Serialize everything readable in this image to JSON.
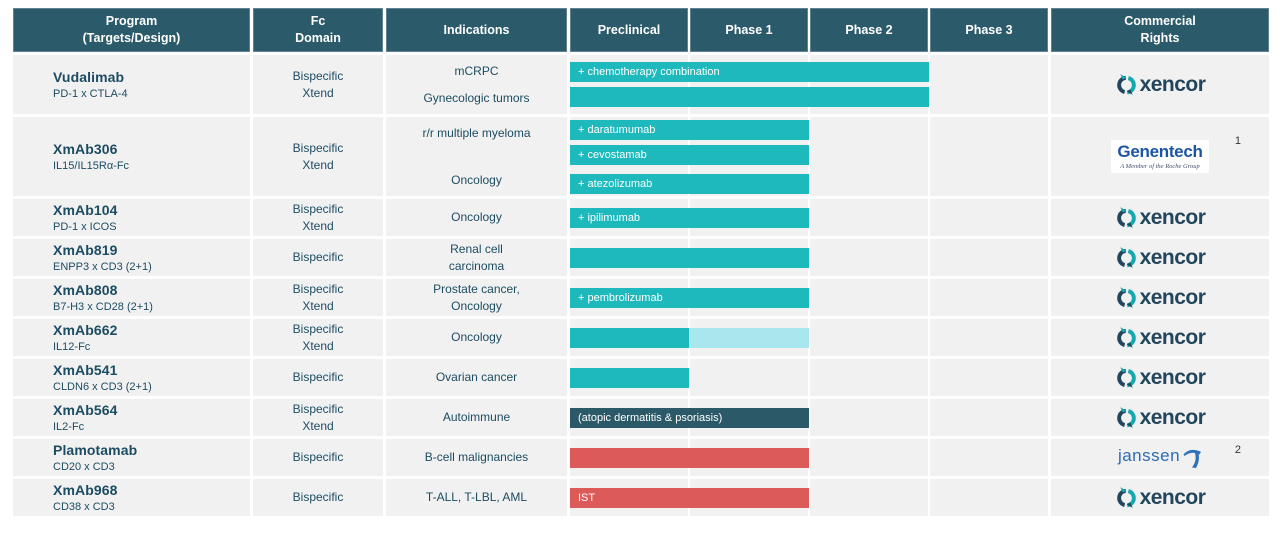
{
  "columns": [
    "Program\n(Targets/Design)",
    "Fc\nDomain",
    "Indications",
    "Preclinical",
    "Phase 1",
    "Phase 2",
    "Phase 3",
    "Commercial\nRights"
  ],
  "colors": {
    "header_bg": "#2b5a6a",
    "row_bg": "#f1f1f2",
    "teal": "#1db9bd",
    "light_teal": "#a9e7ef",
    "navy": "#2b5968",
    "red": "#dc5a57",
    "text": "#1d4c61"
  },
  "logos": {
    "xencor_label": "xencor",
    "genentech_label": "Genentech",
    "genentech_tagline": "A Member of the Roche Group",
    "janssen_label": "janssen"
  },
  "chart_data": {
    "type": "table",
    "title": "Clinical pipeline by development phase",
    "phases": [
      "Preclinical",
      "Phase 1",
      "Phase 2",
      "Phase 3"
    ],
    "phase_end_fracs": {
      "preclinical": 0.249,
      "phase1": 0.5,
      "phase2": 0.751
    },
    "rows": [
      {
        "program": "Vudalimab",
        "target": "PD-1 x CTLA-4",
        "fc_domain": "Bispecific\nXtend",
        "indications": [
          "mCRPC",
          "Gynecologic tumors"
        ],
        "bars": [
          {
            "label": "+ chemotherapy combination",
            "segments": [
              {
                "color": "teal",
                "start": 0,
                "end": 0.751
              }
            ]
          },
          {
            "label": "",
            "segments": [
              {
                "color": "teal",
                "start": 0,
                "end": 0.751
              }
            ]
          }
        ],
        "rights": "xencor",
        "footnote": ""
      },
      {
        "program": "XmAb306",
        "target": "IL15/IL15Rα-Fc",
        "fc_domain": "Bispecific\nXtend",
        "indications": [
          "r/r multiple myeloma",
          "Oncology"
        ],
        "bars": [
          {
            "label": "+ daratumumab",
            "segments": [
              {
                "color": "teal",
                "start": 0,
                "end": 0.5
              }
            ]
          },
          {
            "label": "+ cevostamab",
            "segments": [
              {
                "color": "teal",
                "start": 0,
                "end": 0.5
              }
            ]
          },
          {
            "label": "+ atezolizumab",
            "spacer": true,
            "segments": [
              {
                "color": "teal",
                "start": 0,
                "end": 0.5
              }
            ]
          }
        ],
        "rights": "genentech",
        "footnote": "1"
      },
      {
        "program": "XmAb104",
        "target": "PD-1 x ICOS",
        "fc_domain": "Bispecific\nXtend",
        "indications": [
          "Oncology"
        ],
        "bars": [
          {
            "label": "+ ipilimumab",
            "segments": [
              {
                "color": "teal",
                "start": 0,
                "end": 0.5
              }
            ]
          }
        ],
        "rights": "xencor",
        "footnote": ""
      },
      {
        "program": "XmAb819",
        "target": "ENPP3 x CD3 (2+1)",
        "fc_domain": "Bispecific",
        "indications": [
          "Renal cell\ncarcinoma"
        ],
        "bars": [
          {
            "label": "",
            "segments": [
              {
                "color": "teal",
                "start": 0,
                "end": 0.5
              }
            ]
          }
        ],
        "rights": "xencor",
        "footnote": ""
      },
      {
        "program": "XmAb808",
        "target": "B7-H3 x CD28 (2+1)",
        "fc_domain": "Bispecific\nXtend",
        "indications": [
          "Prostate cancer,\nOncology"
        ],
        "bars": [
          {
            "label": "+ pembrolizumab",
            "segments": [
              {
                "color": "teal",
                "start": 0,
                "end": 0.5
              }
            ]
          }
        ],
        "rights": "xencor",
        "footnote": ""
      },
      {
        "program": "XmAb662",
        "target": "IL12-Fc",
        "fc_domain": "Bispecific\nXtend",
        "indications": [
          "Oncology"
        ],
        "bars": [
          {
            "label": "",
            "segments": [
              {
                "color": "teal",
                "start": 0,
                "end": 0.249
              },
              {
                "color": "light_teal",
                "start": 0.249,
                "end": 0.5
              }
            ]
          }
        ],
        "rights": "xencor",
        "footnote": ""
      },
      {
        "program": "XmAb541",
        "target": "CLDN6 x CD3 (2+1)",
        "fc_domain": "Bispecific",
        "indications": [
          "Ovarian cancer"
        ],
        "bars": [
          {
            "label": "",
            "segments": [
              {
                "color": "teal",
                "start": 0,
                "end": 0.249
              }
            ]
          }
        ],
        "rights": "xencor",
        "footnote": ""
      },
      {
        "program": "XmAb564",
        "target": "IL2-Fc",
        "fc_domain": "Bispecific\nXtend",
        "indications": [
          "Autoimmune"
        ],
        "bars": [
          {
            "label": "(atopic dermatitis & psoriasis)",
            "segments": [
              {
                "color": "navy",
                "start": 0,
                "end": 0.5
              }
            ]
          }
        ],
        "rights": "xencor",
        "footnote": ""
      },
      {
        "program": "Plamotamab",
        "target": "CD20 x CD3",
        "fc_domain": "Bispecific",
        "indications": [
          "B-cell malignancies"
        ],
        "bars": [
          {
            "label": "",
            "segments": [
              {
                "color": "red",
                "start": 0,
                "end": 0.5
              }
            ]
          }
        ],
        "rights": "janssen",
        "footnote": "2"
      },
      {
        "program": "XmAb968",
        "target": "CD38 x CD3",
        "fc_domain": "Bispecific",
        "indications": [
          "T-ALL, T-LBL, AML"
        ],
        "bars": [
          {
            "label": "IST",
            "segments": [
              {
                "color": "red",
                "start": 0,
                "end": 0.5
              }
            ]
          }
        ],
        "rights": "xencor",
        "footnote": ""
      }
    ]
  }
}
